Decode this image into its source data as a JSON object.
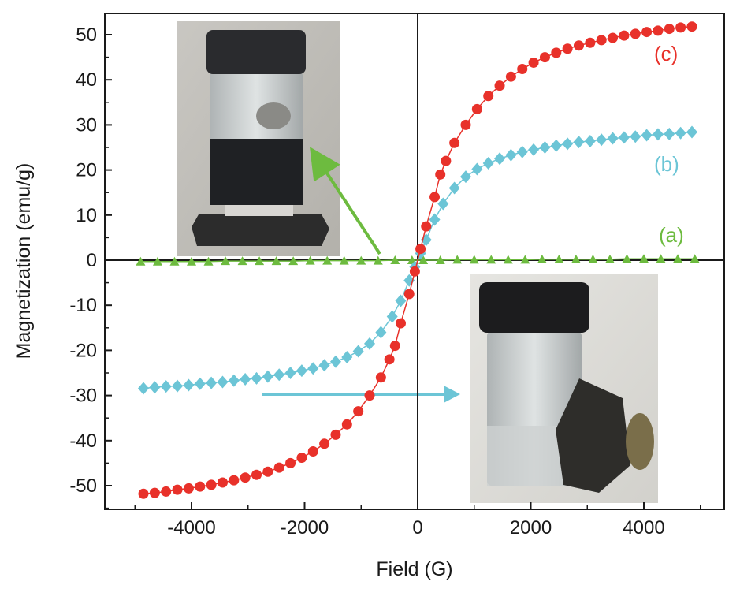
{
  "chart_data": {
    "type": "scatter",
    "xlabel": "Field (G)",
    "ylabel": "Magnetization (emu/g)",
    "xlim": [
      -5000,
      5000
    ],
    "ylim": [
      -55,
      55
    ],
    "x_ticks": [
      -4000,
      -2000,
      0,
      2000,
      4000
    ],
    "x_tick_labels": [
      "-4000",
      "-2000",
      "0",
      "2000",
      "4000"
    ],
    "y_ticks": [
      50,
      40,
      30,
      20,
      10,
      0,
      -10,
      -20,
      -30,
      -40,
      -50
    ],
    "y_tick_labels": [
      "50",
      "40",
      "30",
      "20",
      "10",
      "0",
      "-10",
      "-20",
      "-30",
      "-40",
      "-50"
    ],
    "grid": false,
    "series": [
      {
        "name": "(a)",
        "color": "#6dbb3f",
        "marker": "triangle",
        "x": [
          -4900,
          -4600,
          -4300,
          -4000,
          -3700,
          -3400,
          -3100,
          -2800,
          -2500,
          -2200,
          -1900,
          -1600,
          -1300,
          -1000,
          -700,
          -400,
          -100,
          100,
          400,
          700,
          1000,
          1300,
          1600,
          1900,
          2200,
          2500,
          2800,
          3100,
          3400,
          3700,
          4000,
          4300,
          4600,
          4900
        ],
        "y": [
          -0.3,
          -0.3,
          -0.3,
          -0.3,
          -0.3,
          -0.2,
          -0.2,
          -0.2,
          -0.2,
          -0.2,
          -0.1,
          -0.1,
          -0.1,
          -0.1,
          -0.1,
          0.0,
          0.0,
          0.0,
          0.0,
          0.1,
          0.1,
          0.1,
          0.1,
          0.1,
          0.2,
          0.2,
          0.2,
          0.2,
          0.2,
          0.3,
          0.3,
          0.3,
          0.3,
          0.3
        ]
      },
      {
        "name": "(b)",
        "color": "#6cc5d6",
        "marker": "diamond",
        "x": [
          -4850,
          -4650,
          -4450,
          -4250,
          -4050,
          -3850,
          -3650,
          -3450,
          -3250,
          -3050,
          -2850,
          -2650,
          -2450,
          -2250,
          -2050,
          -1850,
          -1650,
          -1450,
          -1250,
          -1050,
          -850,
          -650,
          -450,
          -300,
          -150,
          -50,
          50,
          150,
          300,
          450,
          650,
          850,
          1050,
          1250,
          1450,
          1650,
          1850,
          2050,
          2250,
          2450,
          2650,
          2850,
          3050,
          3250,
          3450,
          3650,
          3850,
          4050,
          4250,
          4450,
          4650,
          4850
        ],
        "y": [
          -28.4,
          -28.2,
          -28.0,
          -27.9,
          -27.7,
          -27.4,
          -27.2,
          -27.0,
          -26.7,
          -26.4,
          -26.2,
          -25.8,
          -25.4,
          -25.0,
          -24.5,
          -24.0,
          -23.3,
          -22.5,
          -21.5,
          -20.2,
          -18.5,
          -16.0,
          -12.5,
          -9.0,
          -4.5,
          -1.5,
          1.5,
          4.5,
          9.0,
          12.5,
          16.0,
          18.5,
          20.2,
          21.5,
          22.5,
          23.3,
          24.0,
          24.5,
          25.0,
          25.4,
          25.8,
          26.2,
          26.4,
          26.7,
          27.0,
          27.2,
          27.4,
          27.7,
          27.9,
          28.0,
          28.2,
          28.4
        ]
      },
      {
        "name": "(c)",
        "color": "#e8312a",
        "marker": "circle",
        "x": [
          -4850,
          -4650,
          -4450,
          -4250,
          -4050,
          -3850,
          -3650,
          -3450,
          -3250,
          -3050,
          -2850,
          -2650,
          -2450,
          -2250,
          -2050,
          -1850,
          -1650,
          -1450,
          -1250,
          -1050,
          -850,
          -650,
          -500,
          -400,
          -300,
          -150,
          -50,
          50,
          150,
          300,
          400,
          500,
          650,
          850,
          1050,
          1250,
          1450,
          1650,
          1850,
          2050,
          2250,
          2450,
          2650,
          2850,
          3050,
          3250,
          3450,
          3650,
          3850,
          4050,
          4250,
          4450,
          4650,
          4850
        ],
        "y": [
          -51.8,
          -51.6,
          -51.3,
          -50.9,
          -50.6,
          -50.2,
          -49.8,
          -49.3,
          -48.8,
          -48.2,
          -47.6,
          -46.9,
          -46.0,
          -45.0,
          -43.8,
          -42.4,
          -40.7,
          -38.7,
          -36.4,
          -33.5,
          -30.0,
          -26.0,
          -22.0,
          -19.0,
          -14.0,
          -7.5,
          -2.5,
          2.5,
          7.5,
          14.0,
          19.0,
          22.0,
          26.0,
          30.0,
          33.5,
          36.4,
          38.7,
          40.7,
          42.4,
          43.8,
          45.0,
          46.0,
          46.9,
          47.6,
          48.2,
          48.8,
          49.3,
          49.8,
          50.2,
          50.6,
          50.9,
          51.3,
          51.6,
          51.8
        ]
      }
    ],
    "annotations": [
      {
        "text": "(c)",
        "color": "#e8312a"
      },
      {
        "text": "(b)",
        "color": "#6cc5d6"
      },
      {
        "text": "(a)",
        "color": "#6dbb3f"
      }
    ],
    "insets": [
      {
        "description": "photo-vial-with-dispersed-dark-liquid-on-magnet",
        "arrow_color": "#6dbb3f"
      },
      {
        "description": "photo-vial-with-clear-liquid-particles-attracted-to-magnet",
        "arrow_color": "#6cc5d6"
      }
    ]
  }
}
